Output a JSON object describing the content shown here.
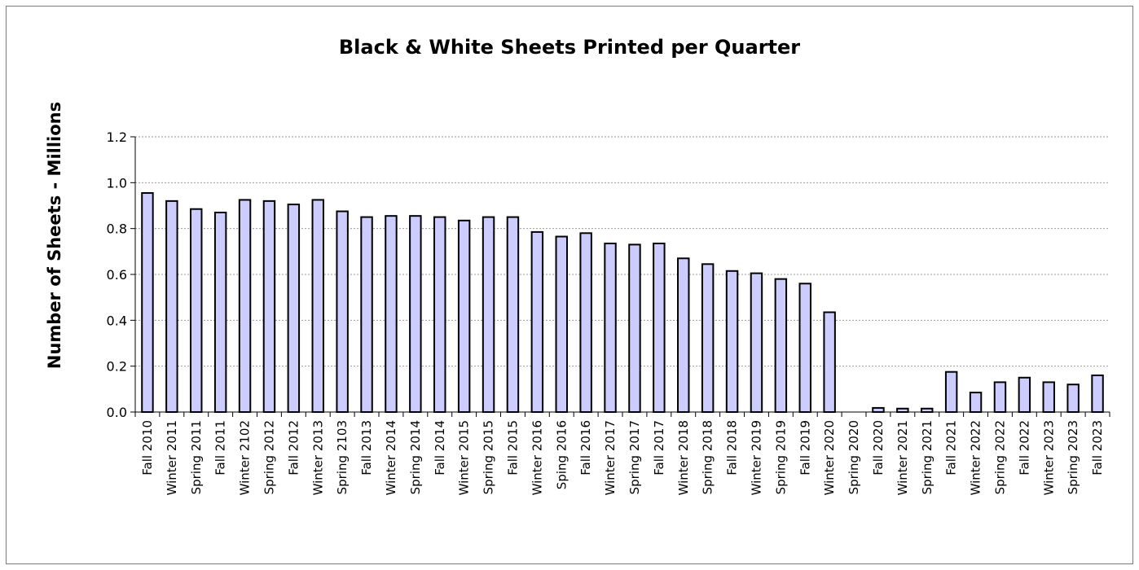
{
  "chart_data": {
    "type": "bar",
    "title": "Black & White Sheets Printed per Quarter",
    "xlabel": "",
    "ylabel": "Number of Sheets - Millions",
    "ylim": [
      0,
      1.2
    ],
    "yticks": [
      "0.0",
      "0.2",
      "0.4",
      "0.6",
      "0.8",
      "1.0",
      "1.2"
    ],
    "grid": true,
    "legend": "none",
    "bar_color": "#ccccff",
    "bar_edge_color": "#000000",
    "categories": [
      "Fall 2010",
      "Winter 2011",
      "Spring 2011",
      "Fall 2011",
      "Winter 2102",
      "Spring 2012",
      "Fall 2012",
      "Winter 2013",
      "Spring 2103",
      "Fall 2013",
      "Winter 2014",
      "Spring 2014",
      "Fall 2014",
      "Winter 2015",
      "Spring 2015",
      "Fall 2015",
      "Winter 2016",
      "Sping 2016",
      "Fall 2016",
      "Winter 2017",
      "Spring 2017",
      "Fall 2017",
      "Winter 2018",
      "Spring 2018",
      "Fall 2018",
      "Winter 2019",
      "Spring 2019",
      "Fall 2019",
      "Winter 2020",
      "Spring 2020",
      "Fall 2020",
      "Winter 2021",
      "Spring 2021",
      "Fall 2021",
      "Winter 2022",
      "Spring 2022",
      "Fall 2022",
      "Winter 2023",
      "Spring 2023",
      "Fall 2023"
    ],
    "values": [
      0.955,
      0.92,
      0.885,
      0.87,
      0.925,
      0.92,
      0.905,
      0.925,
      0.875,
      0.85,
      0.855,
      0.855,
      0.85,
      0.835,
      0.85,
      0.85,
      0.785,
      0.765,
      0.78,
      0.735,
      0.73,
      0.735,
      0.67,
      0.645,
      0.615,
      0.605,
      0.58,
      0.56,
      0.435,
      0.0,
      0.018,
      0.015,
      0.015,
      0.175,
      0.085,
      0.13,
      0.15,
      0.13,
      0.12,
      0.16
    ]
  }
}
